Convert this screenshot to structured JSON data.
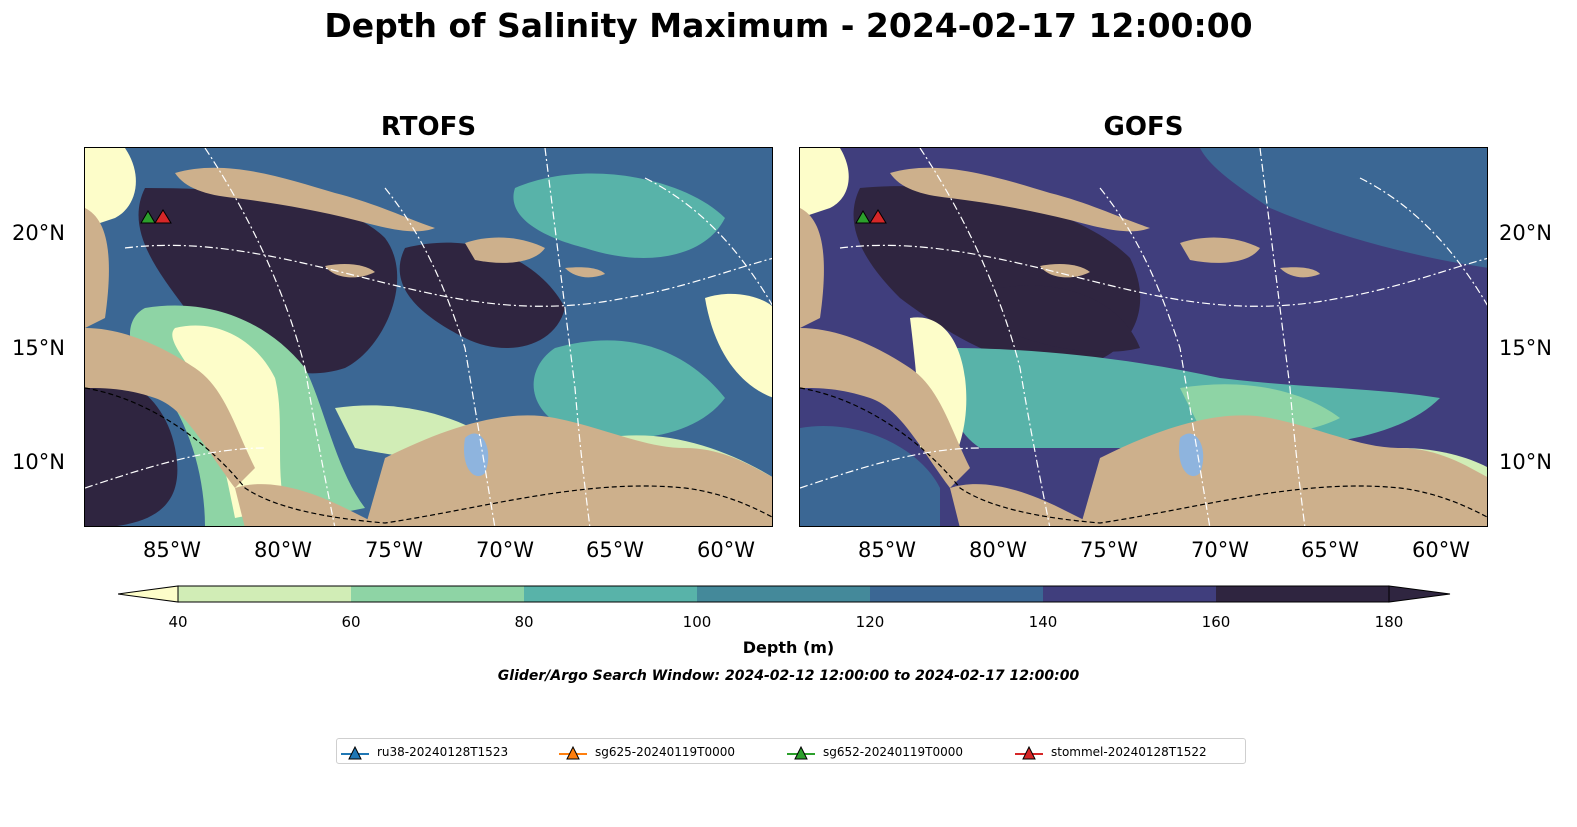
{
  "title": "Depth of Salinity Maximum - 2024-02-17 12:00:00",
  "panels": [
    {
      "title": "RTOFS"
    },
    {
      "title": "GOFS"
    }
  ],
  "lat_labels": [
    "20°N",
    "15°N",
    "10°N"
  ],
  "lon_labels": [
    "85°W",
    "80°W",
    "75°W",
    "70°W",
    "65°W",
    "60°W"
  ],
  "colorbar": {
    "label": "Depth (m)",
    "ticks": [
      "40",
      "60",
      "80",
      "100",
      "120",
      "140",
      "160",
      "180"
    ],
    "colors": [
      "#fdfdc9",
      "#d1edb6",
      "#8ed4a5",
      "#58b3a9",
      "#44899a",
      "#3b6794",
      "#403e7d",
      "#2f2540"
    ]
  },
  "search_window": "Glider/Argo Search Window: 2024-02-12 12:00:00 to 2024-02-17 12:00:00",
  "legend": [
    {
      "name": "ru38-20240128T1523",
      "color": "#1f77b4"
    },
    {
      "name": "sg625-20240119T0000",
      "color": "#ff7f0e"
    },
    {
      "name": "sg652-20240119T0000",
      "color": "#2ca02c"
    },
    {
      "name": "stommel-20240128T1522",
      "color": "#d62728"
    }
  ],
  "map_colors": {
    "land": "#cdb08c",
    "lake": "#8eb4de",
    "river": "#9fb6d6"
  }
}
